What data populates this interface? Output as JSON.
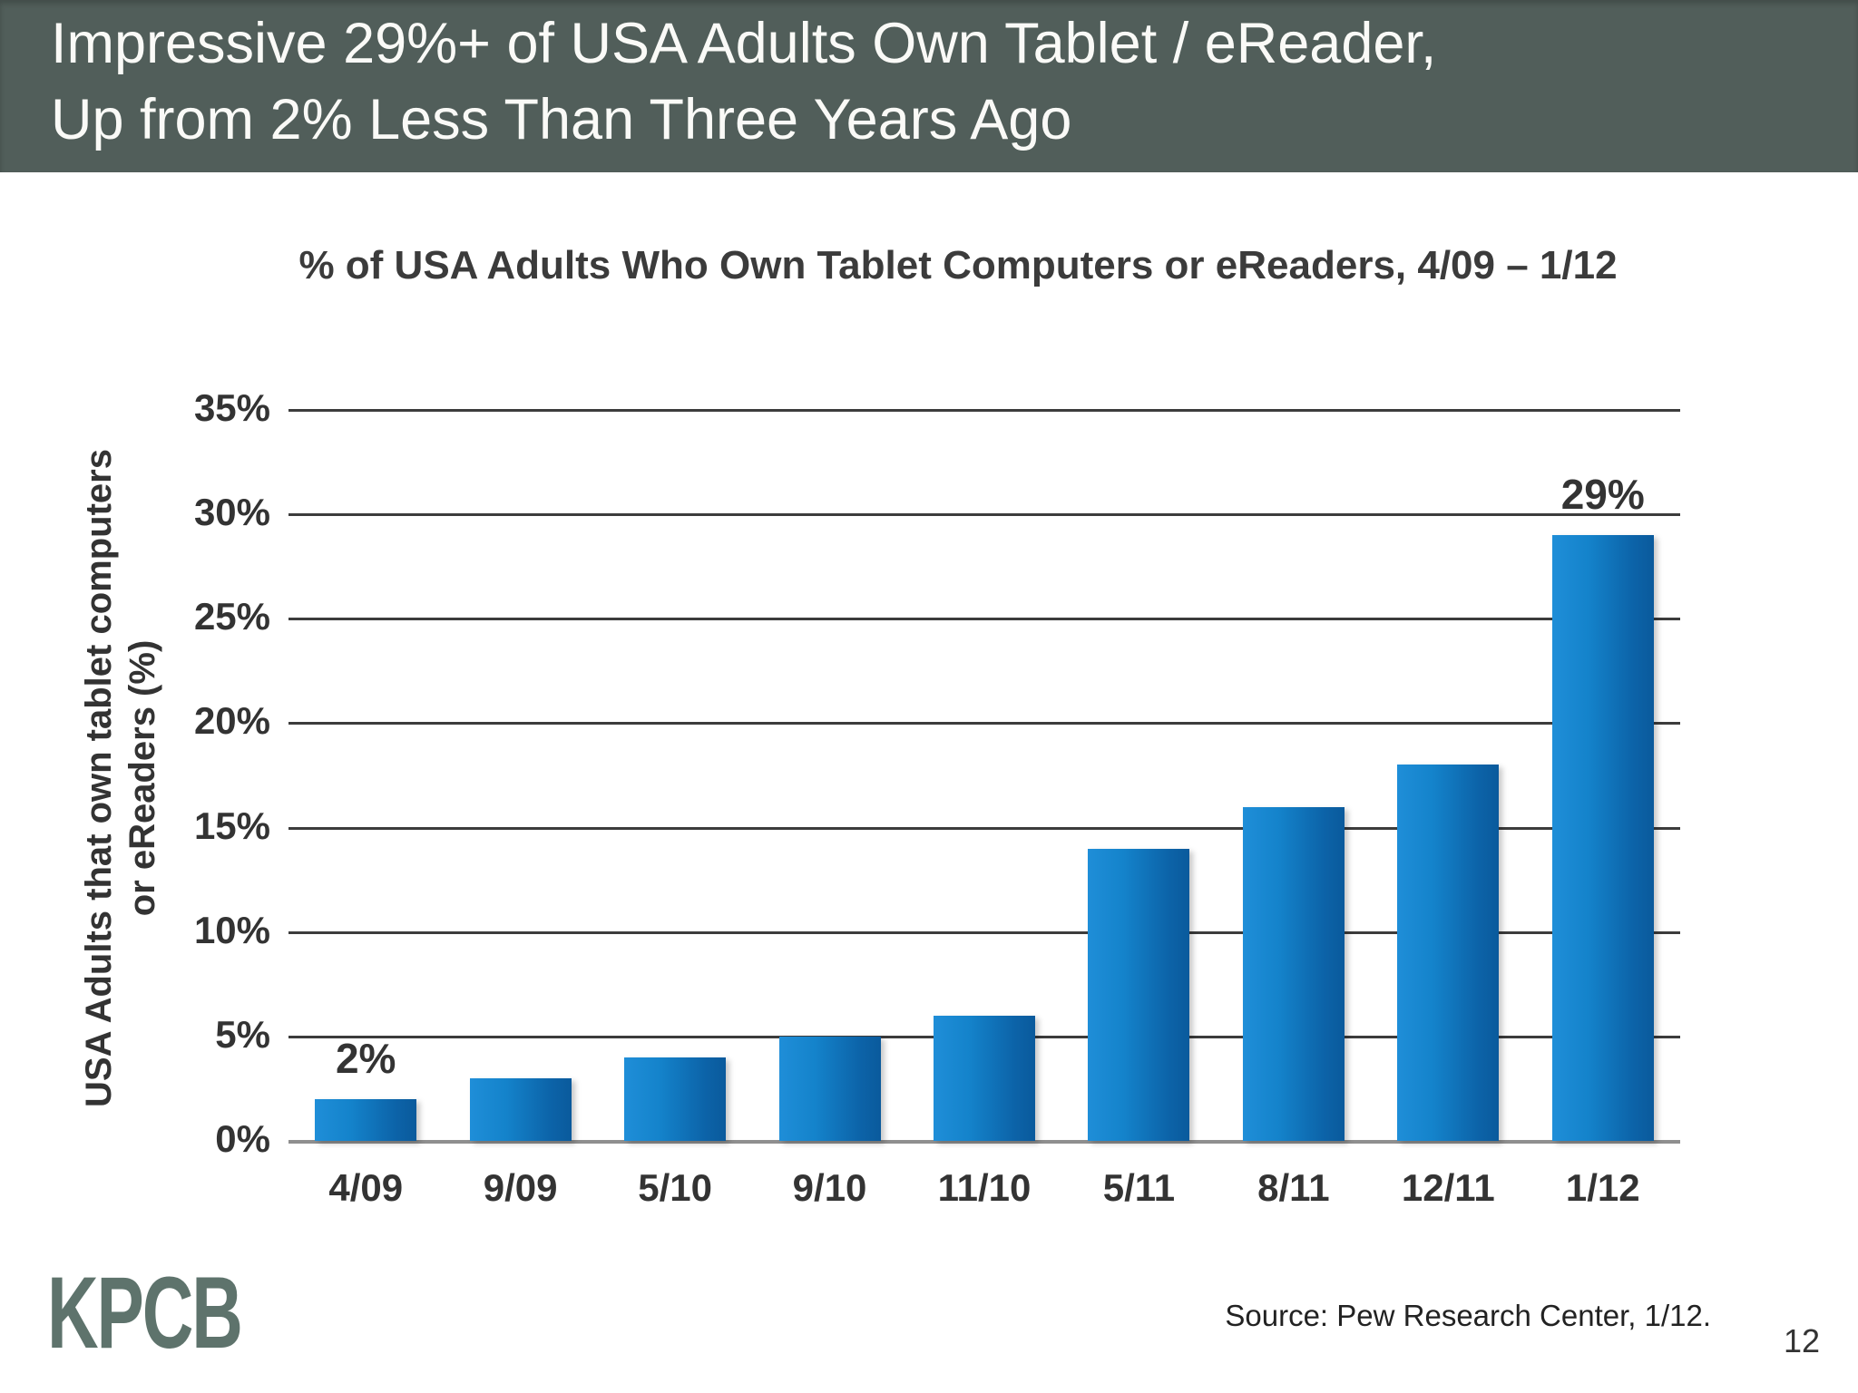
{
  "slide": {
    "header": {
      "line1": "Impressive 29%+ of USA Adults Own Tablet / eReader,",
      "line2": "Up from 2% Less Than Three Years Ago",
      "bg_color": "#515e5a",
      "text_color": "#fafaf7"
    },
    "footer": {
      "logo": "KPCB",
      "logo_color": "#5e736c",
      "source": "Source: Pew Research Center, 1/12.",
      "page_number": "12"
    }
  },
  "chart_data": {
    "type": "bar",
    "title": "% of USA Adults Who Own Tablet Computers or eReaders, 4/09 – 1/12",
    "ylabel_line1": "USA Adults that own tablet computers",
    "ylabel_line2": "or eReaders (%)",
    "xlabel": "",
    "categories": [
      "4/09",
      "9/09",
      "5/10",
      "9/10",
      "11/10",
      "5/11",
      "8/11",
      "12/11",
      "1/12"
    ],
    "values": [
      2,
      3,
      4,
      5,
      6,
      14,
      16,
      18,
      29
    ],
    "unit": "%",
    "ylim": [
      0,
      35
    ],
    "yticks": [
      {
        "value": 0,
        "label": "0%"
      },
      {
        "value": 5,
        "label": "5%"
      },
      {
        "value": 10,
        "label": "10%"
      },
      {
        "value": 15,
        "label": "15%"
      },
      {
        "value": 20,
        "label": "20%"
      },
      {
        "value": 25,
        "label": "25%"
      },
      {
        "value": 30,
        "label": "30%"
      },
      {
        "value": 35,
        "label": "35%"
      }
    ],
    "grid": true,
    "legend": "none",
    "annotations": [
      {
        "index": 0,
        "label": "2%"
      },
      {
        "index": 8,
        "label": "29%"
      }
    ],
    "bar_color_light": "#1f8ed8",
    "bar_color_dark": "#0a5a9c",
    "grid_color": "#3c3c3c",
    "baseline_color": "#8f8f8f",
    "label_color": "#333333"
  }
}
